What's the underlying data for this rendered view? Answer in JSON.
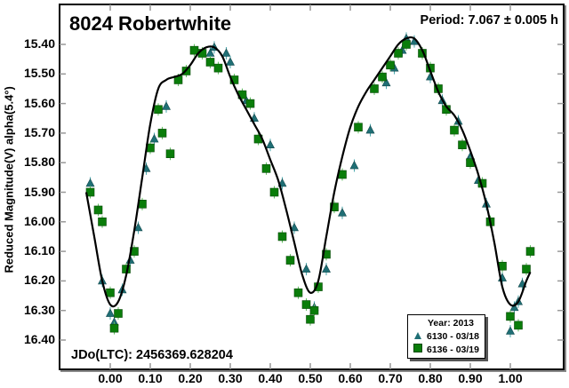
{
  "chart_data": {
    "type": "scatter",
    "title": "8024 Robertwhite",
    "subtitle": "Period: 7.067 ± 0.005 h",
    "annotation": "JDo(LTC): 2456369.628204",
    "xlabel": "",
    "ylabel": "Reduced Magnitude(V) alpha(5.4°)",
    "xlim": [
      -0.13,
      1.13
    ],
    "ylim": [
      16.5,
      15.35
    ],
    "y_inverted": true,
    "grid": false,
    "x_ticks": [
      "0.00",
      "0.10",
      "0.20",
      "0.30",
      "0.40",
      "0.50",
      "0.60",
      "0.70",
      "0.80",
      "0.90",
      "1.00"
    ],
    "y_ticks": [
      "15.40",
      "15.50",
      "15.60",
      "15.70",
      "15.80",
      "15.90",
      "16.00",
      "16.10",
      "16.20",
      "16.30",
      "16.40"
    ],
    "legend": {
      "title": "Year: 2013",
      "position": "lower right",
      "entries": [
        {
          "label": "6130 - 03/18",
          "marker": "triangle",
          "color": "#1f6f75"
        },
        {
          "label": "6136 - 03/19",
          "marker": "square",
          "color": "#0a7d0a"
        }
      ]
    },
    "fit_curve": {
      "color": "#000000",
      "x": [
        -0.06,
        -0.04,
        -0.02,
        0.0,
        0.02,
        0.04,
        0.06,
        0.08,
        0.1,
        0.12,
        0.14,
        0.16,
        0.18,
        0.2,
        0.22,
        0.24,
        0.26,
        0.28,
        0.3,
        0.32,
        0.34,
        0.36,
        0.38,
        0.4,
        0.42,
        0.44,
        0.46,
        0.48,
        0.5,
        0.52,
        0.54,
        0.56,
        0.58,
        0.6,
        0.62,
        0.64,
        0.66,
        0.68,
        0.7,
        0.72,
        0.74,
        0.76,
        0.78,
        0.8,
        0.82,
        0.84,
        0.86,
        0.88,
        0.9,
        0.92,
        0.94,
        0.96,
        0.98,
        1.0,
        1.02,
        1.04,
        1.05
      ],
      "y": [
        15.9,
        16.05,
        16.2,
        16.28,
        16.27,
        16.18,
        16.03,
        15.85,
        15.67,
        15.55,
        15.52,
        15.51,
        15.5,
        15.47,
        15.43,
        15.41,
        15.41,
        15.44,
        15.51,
        15.57,
        15.62,
        15.67,
        15.72,
        15.79,
        15.86,
        15.96,
        16.07,
        16.18,
        16.24,
        16.2,
        16.05,
        15.9,
        15.78,
        15.68,
        15.61,
        15.56,
        15.52,
        15.48,
        15.44,
        15.4,
        15.38,
        15.38,
        15.42,
        15.49,
        15.56,
        15.61,
        15.64,
        15.69,
        15.76,
        15.84,
        15.94,
        16.07,
        16.22,
        16.28,
        16.27,
        16.2,
        16.17
      ]
    },
    "series": [
      {
        "name": "6130 - 03/18",
        "marker": "triangle",
        "color": "#1f6f75",
        "x": [
          -0.05,
          -0.02,
          0.0,
          0.01,
          0.03,
          0.05,
          0.07,
          0.09,
          0.11,
          0.14,
          0.25,
          0.26,
          0.29,
          0.3,
          0.34,
          0.36,
          0.4,
          0.43,
          0.46,
          0.49,
          0.51,
          0.54,
          0.58,
          0.61,
          0.65,
          0.69,
          0.71,
          0.73,
          0.74,
          0.76,
          0.78,
          0.8,
          0.83,
          0.87,
          0.9,
          0.92,
          0.94,
          0.98,
          1.0,
          1.01,
          1.02,
          1.03
        ],
        "y": [
          15.87,
          16.2,
          16.31,
          16.34,
          16.23,
          16.13,
          16.02,
          15.82,
          15.72,
          15.61,
          15.43,
          15.41,
          15.43,
          15.46,
          15.59,
          15.65,
          15.74,
          15.87,
          16.02,
          16.16,
          16.29,
          16.16,
          15.97,
          15.81,
          15.69,
          15.53,
          15.48,
          15.42,
          15.38,
          15.39,
          15.43,
          15.51,
          15.59,
          15.66,
          15.78,
          15.86,
          15.94,
          16.19,
          16.37,
          16.29,
          16.27,
          16.21
        ]
      },
      {
        "name": "6136 - 03/19",
        "marker": "square",
        "color": "#0a7d0a",
        "x": [
          -0.05,
          -0.03,
          -0.02,
          0.0,
          0.01,
          0.02,
          0.04,
          0.06,
          0.08,
          0.1,
          0.12,
          0.13,
          0.15,
          0.17,
          0.19,
          0.21,
          0.23,
          0.25,
          0.27,
          0.31,
          0.33,
          0.35,
          0.37,
          0.39,
          0.41,
          0.43,
          0.45,
          0.47,
          0.49,
          0.5,
          0.51,
          0.52,
          0.54,
          0.56,
          0.58,
          0.62,
          0.66,
          0.68,
          0.7,
          0.72,
          0.74,
          0.78,
          0.8,
          0.82,
          0.84,
          0.86,
          0.88,
          0.9,
          0.93,
          0.95,
          0.98,
          1.0,
          1.02,
          1.04,
          1.05
        ],
        "y": [
          15.9,
          15.96,
          16.0,
          16.24,
          16.36,
          16.31,
          16.16,
          16.1,
          15.94,
          15.75,
          15.62,
          15.7,
          15.77,
          15.52,
          15.49,
          15.42,
          15.43,
          15.46,
          15.48,
          15.52,
          15.57,
          15.6,
          15.72,
          15.82,
          15.9,
          16.05,
          16.13,
          16.24,
          16.28,
          16.33,
          16.3,
          16.22,
          16.11,
          15.95,
          15.84,
          15.68,
          15.55,
          15.51,
          15.47,
          15.43,
          15.4,
          15.43,
          15.48,
          15.55,
          15.62,
          15.69,
          15.74,
          15.8,
          15.87,
          16.0,
          16.15,
          16.32,
          16.35,
          16.16,
          16.1
        ]
      }
    ]
  },
  "labels": {
    "title": "8024 Robertwhite",
    "period": "Period: 7.067 ± 0.005 h",
    "jdo": "JDo(LTC): 2456369.628204",
    "ylabel": "Reduced Magnitude(V) alpha(5.4°)",
    "legend_title": "Year: 2013",
    "legend_1": "6130 - 03/18",
    "legend_2": "6136 - 03/19"
  }
}
